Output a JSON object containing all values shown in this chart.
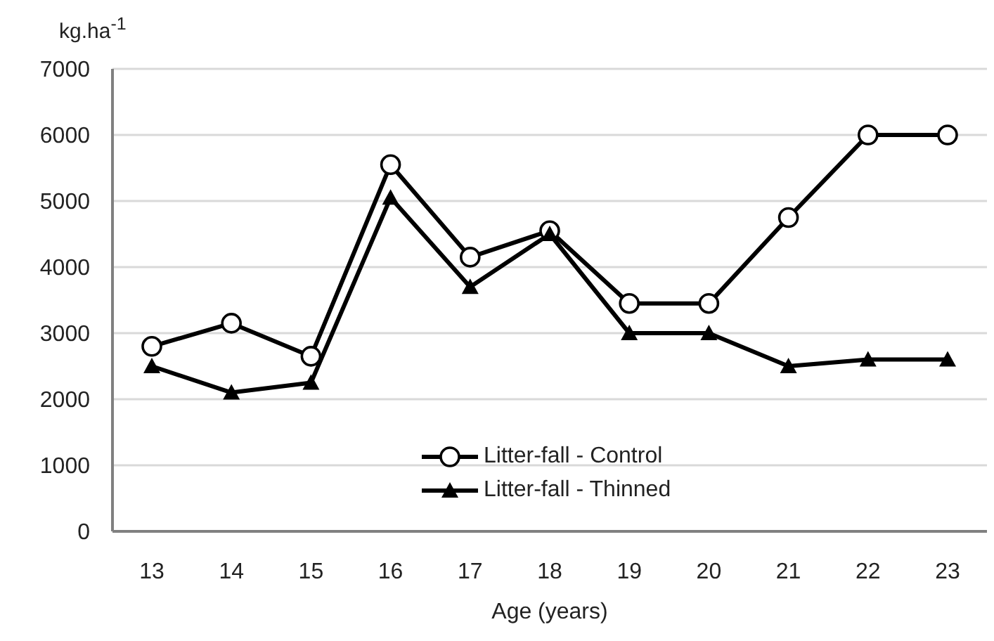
{
  "chart_data": {
    "type": "line",
    "xlabel": "Age (years)",
    "ylabel": "kg.ha$^{-1}$",
    "categories": [
      "13",
      "14",
      "15",
      "16",
      "17",
      "18",
      "19",
      "20",
      "21",
      "22",
      "23"
    ],
    "series": [
      {
        "name": "Litter-fall - Control",
        "color": "#000000",
        "marker": "circle",
        "values": [
          2800,
          3150,
          2650,
          5550,
          4150,
          4550,
          3450,
          3450,
          4750,
          6000,
          6000
        ]
      },
      {
        "name": "Litter-fall - Thinned",
        "color": "#000000",
        "marker": "triangle",
        "values": [
          2500,
          2100,
          2250,
          5050,
          3700,
          4500,
          3000,
          3000,
          2500,
          2600,
          2600
        ]
      }
    ],
    "ylim": [
      0,
      7000
    ],
    "yticks": [
      0,
      1000,
      2000,
      3000,
      4000,
      5000,
      6000,
      7000
    ],
    "grid": "y",
    "legend": "bottom",
    "line_style": "solid"
  }
}
